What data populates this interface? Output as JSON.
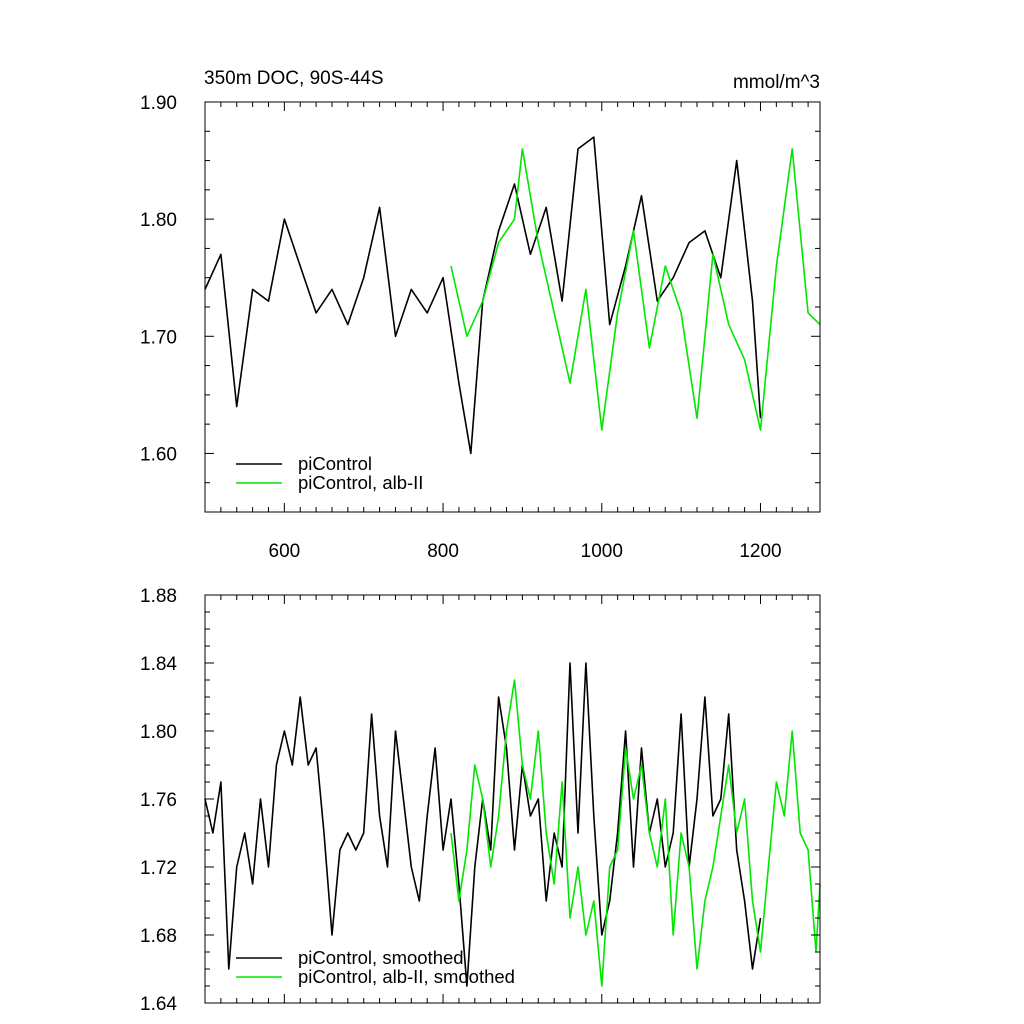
{
  "colors": {
    "control": "#000000",
    "albII": "#00e600",
    "axis": "#000000"
  },
  "chart_data": [
    {
      "type": "line",
      "title": "350m DOC, 90S-44S",
      "units": "mmol/m^3",
      "xlim": [
        500,
        1275
      ],
      "ylim": [
        1.55,
        1.9
      ],
      "x_ticks": [
        600,
        800,
        1000,
        1200
      ],
      "x_tick_labels": [
        "600",
        "800",
        "1000",
        "1200"
      ],
      "y_ticks": [
        1.6,
        1.7,
        1.8,
        1.9
      ],
      "y_tick_labels": [
        "1.60",
        "1.70",
        "1.80",
        "1.90"
      ],
      "legend": "bottom-left",
      "series": [
        {
          "name": "piControl",
          "color": "#000000",
          "x": [
            500,
            520,
            540,
            560,
            580,
            600,
            620,
            640,
            660,
            680,
            700,
            720,
            740,
            760,
            780,
            800,
            820,
            835,
            850,
            870,
            890,
            910,
            930,
            950,
            970,
            990,
            1010,
            1030,
            1050,
            1070,
            1090,
            1110,
            1130,
            1150,
            1170,
            1190,
            1200
          ],
          "y": [
            1.74,
            1.77,
            1.64,
            1.74,
            1.73,
            1.8,
            1.76,
            1.72,
            1.74,
            1.71,
            1.75,
            1.81,
            1.7,
            1.74,
            1.72,
            1.75,
            1.66,
            1.6,
            1.73,
            1.79,
            1.83,
            1.77,
            1.81,
            1.73,
            1.86,
            1.87,
            1.71,
            1.76,
            1.82,
            1.73,
            1.75,
            1.78,
            1.79,
            1.75,
            1.85,
            1.73,
            1.63
          ]
        },
        {
          "name": "piControl, alb-II",
          "color": "#00e600",
          "x": [
            810,
            830,
            850,
            870,
            890,
            900,
            920,
            940,
            960,
            980,
            1000,
            1020,
            1040,
            1060,
            1080,
            1100,
            1120,
            1140,
            1160,
            1180,
            1200,
            1220,
            1240,
            1260,
            1275
          ],
          "y": [
            1.76,
            1.7,
            1.73,
            1.78,
            1.8,
            1.86,
            1.78,
            1.72,
            1.66,
            1.74,
            1.62,
            1.72,
            1.79,
            1.69,
            1.76,
            1.72,
            1.63,
            1.77,
            1.71,
            1.68,
            1.62,
            1.76,
            1.86,
            1.72,
            1.71
          ]
        }
      ]
    },
    {
      "type": "line",
      "xlim": [
        500,
        1275
      ],
      "ylim": [
        1.64,
        1.88
      ],
      "x_ticks": [
        600,
        800,
        1000,
        1200
      ],
      "x_tick_labels": [],
      "y_ticks": [
        1.64,
        1.68,
        1.72,
        1.76,
        1.8,
        1.84,
        1.88
      ],
      "y_tick_labels": [
        "1.64",
        "1.68",
        "1.72",
        "1.76",
        "1.80",
        "1.84",
        "1.88"
      ],
      "legend": "bottom-left",
      "series": [
        {
          "name": "piControl, smoothed",
          "color": "#000000",
          "x": [
            500,
            510,
            520,
            530,
            540,
            550,
            560,
            570,
            580,
            590,
            600,
            610,
            620,
            630,
            640,
            650,
            660,
            670,
            680,
            690,
            700,
            710,
            720,
            730,
            740,
            750,
            760,
            770,
            780,
            790,
            800,
            810,
            820,
            830,
            840,
            850,
            860,
            870,
            880,
            890,
            900,
            910,
            920,
            930,
            940,
            950,
            960,
            970,
            980,
            990,
            1000,
            1010,
            1020,
            1030,
            1040,
            1050,
            1060,
            1070,
            1080,
            1090,
            1100,
            1110,
            1120,
            1130,
            1140,
            1150,
            1160,
            1170,
            1180,
            1190,
            1200
          ],
          "y": [
            1.76,
            1.74,
            1.77,
            1.66,
            1.72,
            1.74,
            1.71,
            1.76,
            1.72,
            1.78,
            1.8,
            1.78,
            1.82,
            1.78,
            1.79,
            1.74,
            1.68,
            1.73,
            1.74,
            1.73,
            1.74,
            1.81,
            1.75,
            1.72,
            1.8,
            1.76,
            1.72,
            1.7,
            1.75,
            1.79,
            1.73,
            1.76,
            1.71,
            1.65,
            1.72,
            1.76,
            1.73,
            1.82,
            1.79,
            1.73,
            1.78,
            1.75,
            1.76,
            1.7,
            1.74,
            1.72,
            1.84,
            1.74,
            1.84,
            1.75,
            1.68,
            1.7,
            1.74,
            1.8,
            1.72,
            1.79,
            1.74,
            1.76,
            1.72,
            1.74,
            1.81,
            1.72,
            1.76,
            1.82,
            1.75,
            1.76,
            1.81,
            1.73,
            1.7,
            1.66,
            1.69
          ]
        },
        {
          "name": "piControl, alb-II, smoothed",
          "color": "#00e600",
          "x": [
            810,
            820,
            830,
            840,
            850,
            860,
            870,
            880,
            890,
            900,
            910,
            920,
            930,
            940,
            950,
            960,
            970,
            980,
            990,
            1000,
            1010,
            1020,
            1030,
            1040,
            1050,
            1060,
            1070,
            1080,
            1090,
            1100,
            1110,
            1120,
            1130,
            1140,
            1150,
            1160,
            1170,
            1180,
            1190,
            1200,
            1210,
            1220,
            1230,
            1240,
            1250,
            1260,
            1270,
            1275
          ],
          "y": [
            1.74,
            1.7,
            1.73,
            1.78,
            1.76,
            1.72,
            1.75,
            1.8,
            1.83,
            1.78,
            1.76,
            1.8,
            1.74,
            1.71,
            1.77,
            1.69,
            1.72,
            1.68,
            1.7,
            1.65,
            1.72,
            1.73,
            1.79,
            1.76,
            1.78,
            1.74,
            1.72,
            1.76,
            1.68,
            1.74,
            1.72,
            1.66,
            1.7,
            1.72,
            1.75,
            1.78,
            1.74,
            1.76,
            1.7,
            1.67,
            1.72,
            1.77,
            1.75,
            1.8,
            1.74,
            1.73,
            1.67,
            1.71
          ]
        }
      ]
    }
  ]
}
